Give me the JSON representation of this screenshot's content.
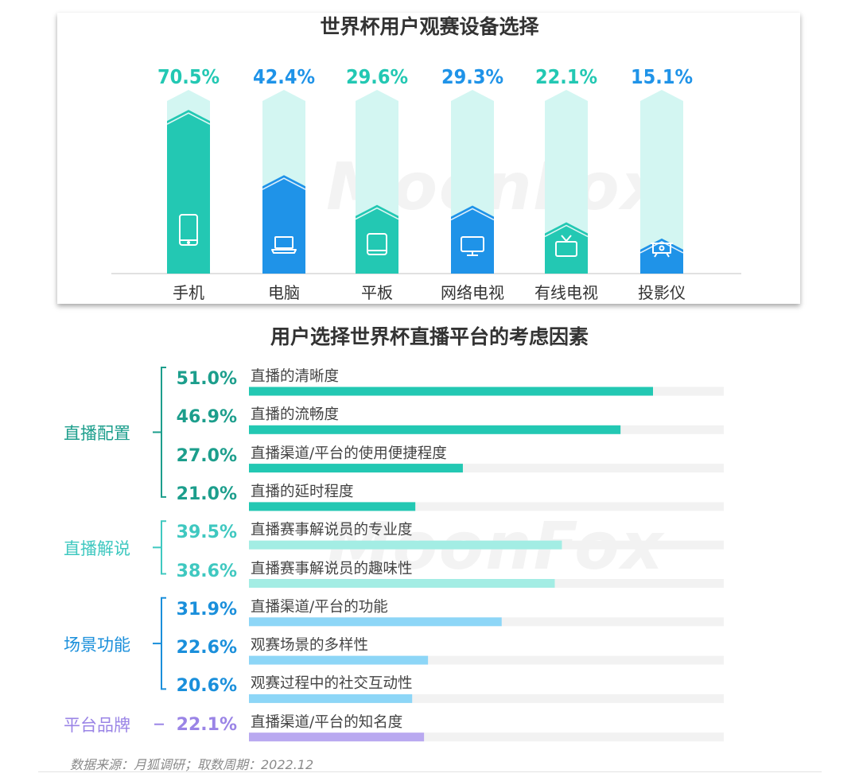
{
  "chart_data": [
    {
      "type": "bar",
      "title": "世界杯用户观赛设备选择",
      "categories": [
        "手机",
        "电脑",
        "平板",
        "网络电视",
        "有线电视",
        "投影仪"
      ],
      "values": [
        70.5,
        42.4,
        29.6,
        29.3,
        22.1,
        15.1
      ],
      "value_labels": [
        "70.5%",
        "42.4%",
        "29.6%",
        "29.3%",
        "22.1%",
        "15.1%"
      ],
      "icons": [
        "phone-icon",
        "laptop-icon",
        "tablet-icon",
        "monitor-icon",
        "tv-icon",
        "projector-icon"
      ],
      "colors": [
        "#23c8b3",
        "#1f93e8",
        "#23c8b3",
        "#1f93e8",
        "#23c8b3",
        "#1f93e8"
      ],
      "track_color": "#d3f6f2",
      "ylim": [
        0,
        100
      ]
    },
    {
      "type": "bar",
      "orientation": "horizontal",
      "title": "用户选择世界杯直播平台的考虑因素",
      "xlim": [
        0,
        60
      ],
      "groups": [
        {
          "name": "直播配置",
          "color": "#1c9e8c",
          "bar_color": "#23c8b3",
          "items": [
            {
              "label": "直播的清晰度",
              "value": 51.0,
              "value_label": "51.0%"
            },
            {
              "label": "直播的流畅度",
              "value": 46.9,
              "value_label": "46.9%"
            },
            {
              "label": "直播渠道/平台的使用便捷程度",
              "value": 27.0,
              "value_label": "27.0%"
            },
            {
              "label": "直播的延时程度",
              "value": 21.0,
              "value_label": "21.0%"
            }
          ]
        },
        {
          "name": "直播解说",
          "color": "#3fc8c0",
          "bar_color": "#a3ede4",
          "items": [
            {
              "label": "直播赛事解说员的专业度",
              "value": 39.5,
              "value_label": "39.5%"
            },
            {
              "label": "直播赛事解说员的趣味性",
              "value": 38.6,
              "value_label": "38.6%"
            }
          ]
        },
        {
          "name": "场景功能",
          "color": "#1a8fdb",
          "bar_color": "#8dd6f7",
          "items": [
            {
              "label": "直播渠道/平台的功能",
              "value": 31.9,
              "value_label": "31.9%"
            },
            {
              "label": "观赛场景的多样性",
              "value": 22.6,
              "value_label": "22.6%"
            },
            {
              "label": "观赛过程中的社交互动性",
              "value": 20.6,
              "value_label": "20.6%"
            }
          ]
        },
        {
          "name": "平台品牌",
          "color": "#9a84e6",
          "bar_color": "#b9a9f0",
          "items": [
            {
              "label": "直播渠道/平台的知名度",
              "value": 22.1,
              "value_label": "22.1%"
            }
          ]
        }
      ],
      "track_color": "#f2f2f2"
    }
  ],
  "watermark": "MoonFox",
  "source_text": "数据来源：月狐调研；取数周期：2022.12"
}
